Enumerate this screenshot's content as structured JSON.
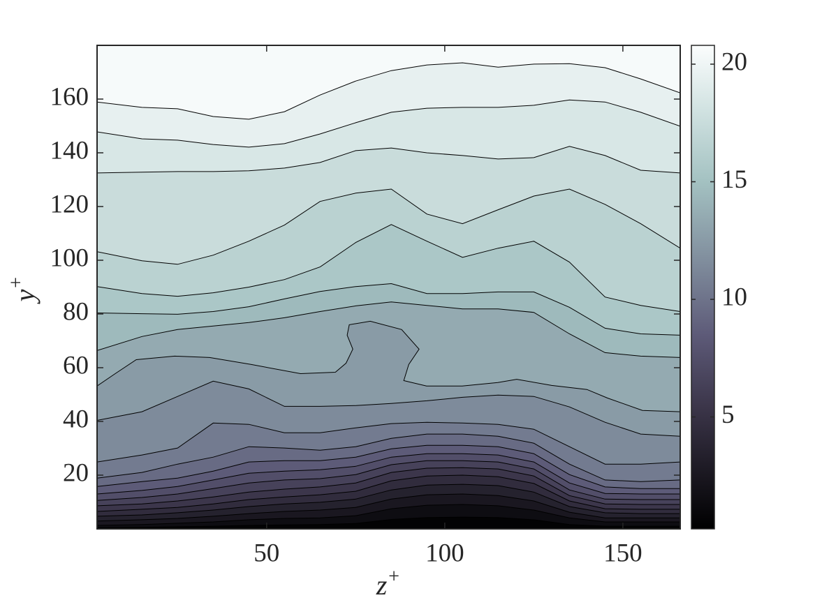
{
  "chart_data": {
    "type": "contour",
    "xlabel": {
      "base": "z",
      "sup": "+"
    },
    "ylabel": {
      "base": "y",
      "sup": "+"
    },
    "xlim": [
      2.4,
      166.1
    ],
    "ylim": [
      0,
      180
    ],
    "xticks": [
      50,
      100,
      150
    ],
    "yticks": [
      20,
      40,
      60,
      80,
      100,
      120,
      140,
      160
    ],
    "clim": [
      0.24,
      20.8
    ],
    "cticks": [
      5,
      10,
      15,
      20
    ],
    "colormap": {
      "positions": [
        0,
        0.25,
        0.4,
        0.55,
        0.72,
        0.87,
        1
      ],
      "colors": [
        "#000000",
        "#3b3549",
        "#5d5a78",
        "#7f8c9c",
        "#a4c2c2",
        "#d2e3e2",
        "#fbfdfd"
      ]
    },
    "line_color": "#000000",
    "contours": [
      {
        "level": 1,
        "x": [
          2.4,
          15,
          25,
          35,
          45,
          55,
          65,
          75,
          85,
          95,
          105,
          115,
          125,
          135,
          145,
          155,
          166.1
        ],
        "y": [
          0.5,
          0.6,
          0.8,
          1.0,
          1.3,
          1.5,
          1.6,
          2.0,
          3.5,
          4.2,
          4.4,
          4.2,
          3.4,
          1.6,
          1.0,
          1.0,
          1.0
        ]
      },
      {
        "level": 2,
        "x": [
          2.4,
          15,
          25,
          35,
          45,
          55,
          65,
          75,
          85,
          95,
          105,
          115,
          125,
          135,
          145,
          155,
          166.1
        ],
        "y": [
          1.3,
          1.6,
          2.1,
          2.6,
          3.4,
          3.9,
          4.1,
          4.9,
          7.5,
          8.8,
          9.1,
          8.6,
          7.0,
          4.1,
          2.6,
          2.6,
          2.6
        ]
      },
      {
        "level": 3,
        "x": [
          2.4,
          15,
          25,
          35,
          45,
          55,
          65,
          75,
          85,
          95,
          105,
          115,
          125,
          135,
          145,
          155,
          166.1
        ],
        "y": [
          2.9,
          3.4,
          3.9,
          4.7,
          5.7,
          6.5,
          7.0,
          8.0,
          11.1,
          12.7,
          13.0,
          12.4,
          10.4,
          6.2,
          4.1,
          4.1,
          4.1
        ]
      },
      {
        "level": 4,
        "x": [
          2.4,
          15,
          25,
          35,
          45,
          55,
          65,
          75,
          85,
          95,
          105,
          115,
          125,
          135,
          145,
          155,
          166.1
        ],
        "y": [
          4.7,
          5.2,
          6.0,
          7.0,
          8.3,
          9.3,
          9.9,
          11.1,
          14.5,
          16.3,
          16.6,
          16.1,
          13.7,
          8.3,
          6.0,
          5.7,
          5.7
        ]
      },
      {
        "level": 5,
        "x": [
          2.4,
          15,
          25,
          35,
          45,
          55,
          65,
          75,
          85,
          95,
          105,
          115,
          125,
          135,
          145,
          155,
          166.1
        ],
        "y": [
          6.5,
          7.3,
          8.0,
          9.3,
          10.9,
          11.9,
          12.7,
          14.0,
          17.9,
          19.7,
          20.0,
          19.4,
          16.9,
          10.4,
          7.5,
          7.3,
          7.3
        ]
      },
      {
        "level": 6,
        "x": [
          2.4,
          15,
          25,
          35,
          45,
          55,
          65,
          75,
          85,
          95,
          105,
          115,
          125,
          135,
          145,
          155,
          166.1
        ],
        "y": [
          8.6,
          9.3,
          10.4,
          11.9,
          13.7,
          14.8,
          15.6,
          17.1,
          21.0,
          22.6,
          22.8,
          22.3,
          19.7,
          12.4,
          9.3,
          9.1,
          9.1
        ]
      },
      {
        "level": 7,
        "x": [
          2.4,
          15,
          25,
          35,
          45,
          55,
          65,
          75,
          85,
          95,
          105,
          115,
          125,
          135,
          145,
          155,
          166.1
        ],
        "y": [
          10.6,
          11.7,
          13.0,
          15.0,
          17.1,
          18.2,
          18.7,
          20.2,
          23.9,
          25.4,
          25.4,
          24.9,
          22.3,
          14.5,
          11.1,
          10.9,
          10.9
        ]
      },
      {
        "level": 8,
        "x": [
          2.4,
          15,
          25,
          35,
          45,
          55,
          65,
          75,
          85,
          95,
          105,
          115,
          125,
          135,
          145,
          155,
          166.1
        ],
        "y": [
          13.0,
          14.3,
          15.8,
          18.2,
          20.7,
          21.5,
          22.0,
          23.3,
          26.7,
          28.0,
          28.0,
          27.5,
          24.9,
          17.1,
          13.2,
          13.0,
          13.0
        ]
      },
      {
        "level": 9,
        "x": [
          2.4,
          15,
          25,
          35,
          45,
          55,
          65,
          75,
          85,
          95,
          105,
          115,
          125,
          135,
          145,
          155,
          166.1
        ],
        "y": [
          15.8,
          17.6,
          18.9,
          21.5,
          24.9,
          25.4,
          25.4,
          26.7,
          29.8,
          31.1,
          31.1,
          30.6,
          28.0,
          20.2,
          15.6,
          15.0,
          15.0
        ]
      },
      {
        "level": 10,
        "x": [
          2.4,
          15,
          25,
          35,
          45,
          55,
          65,
          75,
          85,
          95,
          105,
          115,
          125,
          135,
          145,
          155,
          166.1
        ],
        "y": [
          18.9,
          21.0,
          24.1,
          26.7,
          30.6,
          30.1,
          29.3,
          30.6,
          33.7,
          35.3,
          35.3,
          34.5,
          31.9,
          24.1,
          18.2,
          17.6,
          18.2
        ]
      },
      {
        "level": 11,
        "x": [
          2.4,
          15,
          25,
          35,
          45,
          55,
          65,
          75,
          85,
          95,
          105,
          115,
          125,
          135,
          145,
          155,
          166.1
        ],
        "y": [
          24.9,
          27.5,
          30.1,
          39.4,
          38.9,
          35.8,
          35.8,
          37.6,
          39.2,
          39.7,
          39.4,
          38.9,
          37.1,
          30.6,
          24.1,
          24.1,
          24.9
        ]
      },
      {
        "level": 12,
        "x": [
          2.4,
          15,
          25,
          35,
          45,
          55,
          65,
          75,
          85,
          95,
          105,
          115,
          125,
          135,
          145,
          155,
          166.1
        ],
        "y": [
          40.4,
          43.6,
          49.3,
          55.0,
          52.1,
          45.6,
          45.6,
          45.9,
          46.7,
          47.7,
          49.0,
          49.8,
          49.3,
          45.4,
          39.7,
          35.3,
          34.5
        ]
      },
      {
        "level": 13,
        "x": [
          2.4,
          7.5,
          13.4,
          24.2,
          34.0,
          45.7,
          59.5,
          69.3,
          72.3,
          74.2,
          72.6,
          73.2,
          79.1,
          87.9,
          92.8,
          89.9,
          88.5,
          94.9,
          104.9,
          114.9,
          120.2,
          130.0,
          139.9,
          145.7,
          155.5,
          166.1
        ],
        "y": [
          53.2,
          57.8,
          63.0,
          64.3,
          63.8,
          61.2,
          57.8,
          58.3,
          61.7,
          66.9,
          72.1,
          76.0,
          77.3,
          74.2,
          66.9,
          61.2,
          55.2,
          53.2,
          53.2,
          54.5,
          55.7,
          53.4,
          51.9,
          48.7,
          44.1,
          43.6
        ]
      },
      {
        "level": 14,
        "x": [
          2.4,
          15,
          25,
          35,
          45,
          55,
          65,
          75,
          85,
          95,
          105,
          115,
          125,
          135,
          145,
          155,
          166.1
        ],
        "y": [
          66.4,
          71.6,
          74.2,
          75.5,
          76.8,
          78.6,
          80.9,
          83.0,
          84.5,
          83.2,
          81.9,
          81.9,
          80.6,
          72.6,
          65.6,
          64.3,
          63.8
        ]
      },
      {
        "level": 15,
        "x": [
          2.4,
          15,
          25,
          35,
          45,
          55,
          65,
          75,
          85,
          95,
          105,
          115,
          125,
          135,
          145,
          155,
          166.1
        ],
        "y": [
          80.4,
          80.1,
          79.9,
          80.9,
          82.7,
          85.6,
          88.4,
          90.2,
          91.3,
          87.6,
          87.6,
          88.2,
          88.2,
          82.5,
          74.7,
          72.6,
          72.1
        ]
      },
      {
        "level": 16,
        "x": [
          2.4,
          15,
          25,
          35,
          45,
          55,
          65,
          75,
          85,
          95,
          105,
          115,
          125,
          135,
          145,
          155,
          166.1
        ],
        "y": [
          90.2,
          87.6,
          86.6,
          87.9,
          90.0,
          92.8,
          97.5,
          106.6,
          113.3,
          107.1,
          101.1,
          104.5,
          107.1,
          99.3,
          86.3,
          83.2,
          80.9
        ]
      },
      {
        "level": 17,
        "x": [
          2.4,
          15,
          25,
          35,
          45,
          55,
          65,
          75,
          85,
          95,
          105,
          115,
          125,
          135,
          145,
          155,
          166.1
        ],
        "y": [
          103.2,
          99.8,
          98.5,
          101.9,
          107.1,
          113.1,
          121.9,
          125.0,
          126.5,
          117.2,
          113.6,
          118.8,
          123.9,
          126.5,
          120.8,
          113.6,
          104.5
        ]
      },
      {
        "level": 18,
        "x": [
          2.4,
          15,
          25,
          35,
          45,
          55,
          65,
          75,
          85,
          95,
          105,
          115,
          125,
          135,
          145,
          155,
          166.1
        ],
        "y": [
          132.5,
          132.8,
          133.0,
          133.0,
          133.3,
          134.3,
          136.4,
          140.8,
          141.8,
          140.0,
          139.0,
          137.7,
          138.2,
          142.4,
          139.0,
          133.5,
          132.5
        ]
      },
      {
        "level": 19,
        "x": [
          2.4,
          15,
          25,
          35,
          45,
          55,
          65,
          75,
          85,
          95,
          105,
          115,
          125,
          135,
          145,
          155,
          166.1
        ],
        "y": [
          147.8,
          145.2,
          144.7,
          143.1,
          142.1,
          143.4,
          147.0,
          151.2,
          155.1,
          156.6,
          156.9,
          156.9,
          157.7,
          159.7,
          158.9,
          155.1,
          149.9
        ]
      },
      {
        "level": 20,
        "x": [
          2.4,
          15,
          25,
          35,
          45,
          55,
          65,
          75,
          85,
          95,
          105,
          115,
          125,
          135,
          145,
          155,
          166.1
        ],
        "y": [
          158.9,
          156.9,
          156.4,
          153.5,
          152.5,
          155.3,
          161.5,
          166.7,
          170.6,
          172.7,
          173.5,
          171.9,
          173.0,
          173.2,
          171.7,
          167.5,
          162.3
        ]
      }
    ]
  }
}
